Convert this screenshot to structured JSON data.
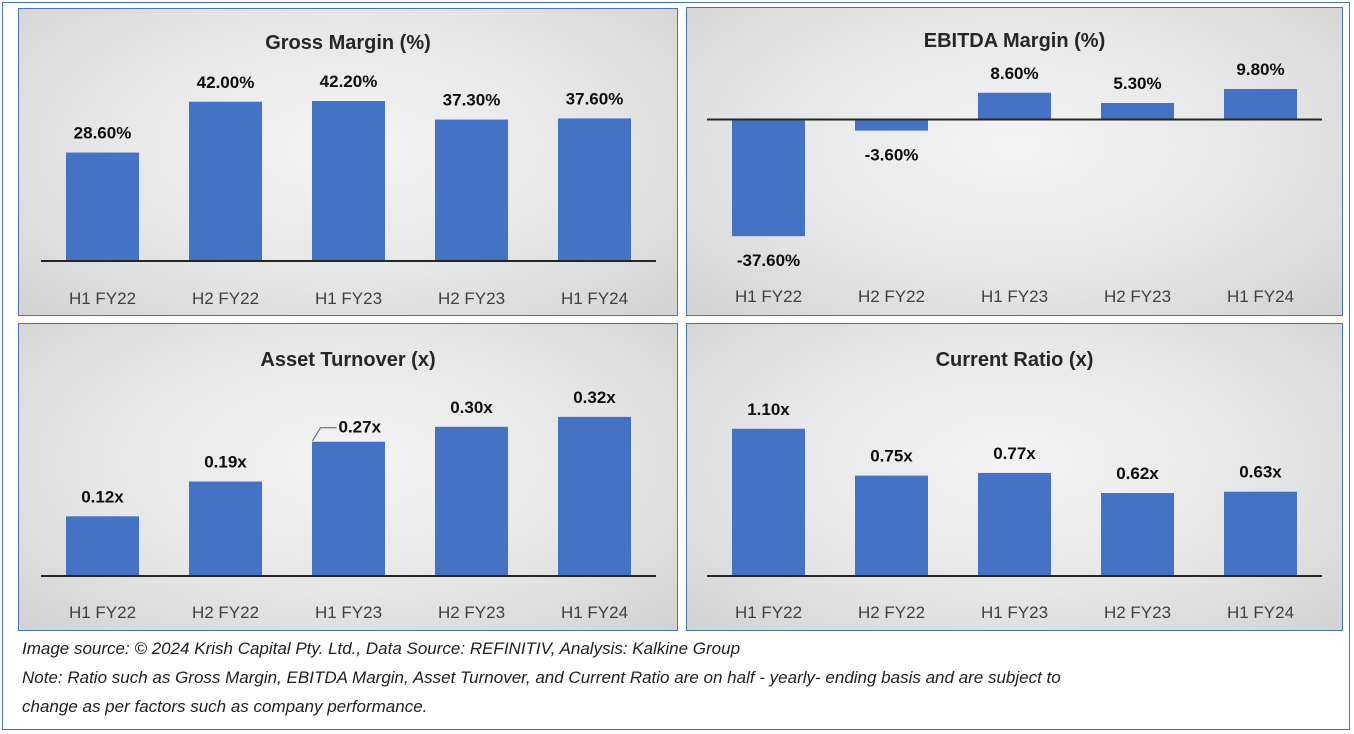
{
  "chart_data": [
    {
      "type": "bar",
      "title": "Gross Margin (%)",
      "categories": [
        "H1 FY22",
        "H2 FY22",
        "H1 FY23",
        "H2 FY23",
        "H1 FY24"
      ],
      "values": [
        28.6,
        42.0,
        42.2,
        37.3,
        37.6
      ],
      "labels": [
        "28.60%",
        "42.00%",
        "42.20%",
        "37.30%",
        "37.60%"
      ],
      "ylim": [
        0,
        48
      ],
      "color": "#4472c4",
      "grid": false,
      "legend": "none"
    },
    {
      "type": "bar",
      "title": "EBITDA Margin (%)",
      "categories": [
        "H1 FY22",
        "H2 FY22",
        "H1 FY23",
        "H2 FY23",
        "H1 FY24"
      ],
      "values": [
        -37.6,
        -3.6,
        8.6,
        5.3,
        9.8
      ],
      "labels": [
        "-37.60%",
        "-3.60%",
        "8.60%",
        "5.30%",
        "9.80%"
      ],
      "ylim": [
        -44,
        14
      ],
      "color": "#4472c4",
      "grid": false,
      "legend": "none"
    },
    {
      "type": "bar",
      "title": "Asset Turnover (x)",
      "categories": [
        "H1 FY22",
        "H2 FY22",
        "H1 FY23",
        "H2 FY23",
        "H1 FY24"
      ],
      "values": [
        0.12,
        0.19,
        0.27,
        0.3,
        0.32
      ],
      "labels": [
        "0.12x",
        "0.19x",
        "0.27x",
        "0.30x",
        "0.32x"
      ],
      "ylim": [
        0,
        0.37
      ],
      "color": "#4472c4",
      "grid": false,
      "legend": "none"
    },
    {
      "type": "bar",
      "title": "Current Ratio (x)",
      "categories": [
        "H1 FY22",
        "H2 FY22",
        "H1 FY23",
        "H2 FY23",
        "H1 FY24"
      ],
      "values": [
        1.1,
        0.75,
        0.77,
        0.62,
        0.63
      ],
      "labels": [
        "1.10x",
        "0.75x",
        "0.77x",
        "0.62x",
        "0.63x"
      ],
      "ylim": [
        0,
        1.3
      ],
      "color": "#4472c4",
      "grid": false,
      "legend": "none"
    }
  ],
  "notes": {
    "source": "Image source: © 2024 Krish Capital Pty. Ltd., Data Source: REFINITIV, Analysis: Kalkine Group",
    "note_line1": "Note: Ratio such as Gross Margin, EBITDA Margin, Asset Turnover, and Current Ratio are on half - yearly- ending basis and are subject to",
    "note_line2": "change as per factors such as company performance."
  }
}
